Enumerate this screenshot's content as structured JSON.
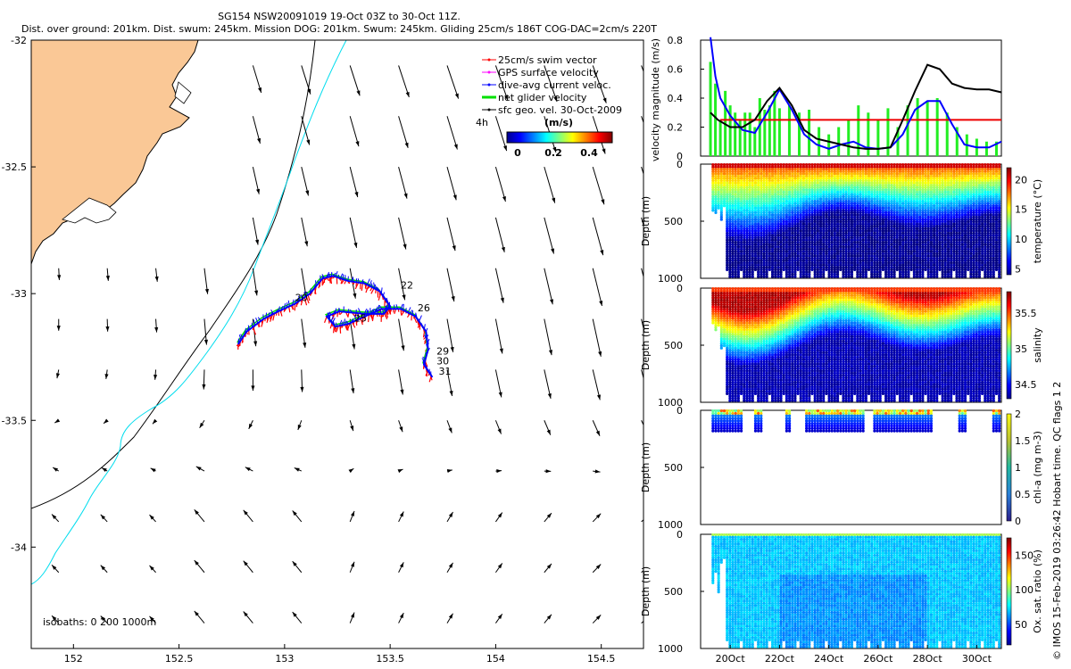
{
  "title": {
    "line1": "SG154 NSW20091019 19-Oct 03Z to 30-Oct 11Z.",
    "line2": "Dist. over ground: 201km. Dist. swum: 245km. Mission DOG: 201km. Swum: 245km. Gliding 25cm/s 186T COG-DAC=2cm/s 220T"
  },
  "colors": {
    "land": "#FAC896",
    "isobath200": "#00DDEE",
    "isobath1000": "#000000",
    "swim": "#FF0000",
    "gps": "#FF00FF",
    "dac": "#0000FF",
    "net": "#00E000",
    "ref": "#EE0000"
  },
  "map": {
    "legend": {
      "items": [
        "25cm/s swim vector",
        "GPS surface velocity",
        "dive-avg current veloc.",
        "net glider velocity",
        "sfc geo. vel. 30-Oct-2009"
      ],
      "scale_label": "4h",
      "unit": "(m/s)",
      "cbar_ticks": [
        "0",
        "0.2",
        "0.4"
      ]
    },
    "isobaths_label": "isobaths: 0   200   1000m",
    "day_labels": [
      {
        "text": "22",
        "lon": 153.55,
        "lat": -32.98
      },
      {
        "text": "26",
        "lon": 153.63,
        "lat": -33.07
      },
      {
        "text": "29",
        "lon": 153.72,
        "lat": -33.24
      },
      {
        "text": "30",
        "lon": 153.72,
        "lat": -33.28
      },
      {
        "text": "31",
        "lon": 153.73,
        "lat": -33.32
      },
      {
        "text": "25",
        "lon": 153.33,
        "lat": -33.11
      },
      {
        "text": "20",
        "lon": 153.05,
        "lat": -33.03
      }
    ]
  },
  "chart_data": [
    {
      "type": "quiver-map",
      "title": "Glider track map with surface geostrophic velocity",
      "xlim": [
        151.8,
        154.7
      ],
      "ylim": [
        -34.4,
        -32
      ],
      "xticks": [
        152,
        152.5,
        153,
        153.5,
        154,
        154.5
      ],
      "yticks": [
        -32,
        -32.5,
        -33,
        -33.5,
        -34
      ],
      "xtick_labels": [
        "152",
        "152.5",
        "153",
        "153.5",
        "154",
        "154.5"
      ],
      "ytick_labels": [
        "-32",
        "-32.5",
        "-33",
        "-33.5",
        "-34"
      ],
      "track": [
        [
          152.78,
          -33.2
        ],
        [
          152.82,
          -33.15
        ],
        [
          152.9,
          -33.1
        ],
        [
          152.97,
          -33.07
        ],
        [
          153.05,
          -33.04
        ],
        [
          153.12,
          -33.0
        ],
        [
          153.18,
          -32.94
        ],
        [
          153.23,
          -32.93
        ],
        [
          153.3,
          -32.95
        ],
        [
          153.38,
          -32.96
        ],
        [
          153.45,
          -32.99
        ],
        [
          153.5,
          -33.05
        ],
        [
          153.47,
          -33.08
        ],
        [
          153.38,
          -33.08
        ],
        [
          153.26,
          -33.07
        ],
        [
          153.2,
          -33.09
        ],
        [
          153.24,
          -33.13
        ],
        [
          153.3,
          -33.12
        ],
        [
          153.38,
          -33.09
        ],
        [
          153.46,
          -33.06
        ],
        [
          153.55,
          -33.06
        ],
        [
          153.62,
          -33.09
        ],
        [
          153.67,
          -33.15
        ],
        [
          153.68,
          -33.22
        ],
        [
          153.66,
          -33.28
        ],
        [
          153.7,
          -33.33
        ]
      ]
    },
    {
      "type": "line",
      "title": "velocity magnitude",
      "ylabel": "velocity magnitude (m/s)",
      "ylim": [
        0,
        0.8
      ],
      "yticks": [
        0,
        0.2,
        0.4,
        0.6,
        0.8
      ],
      "ytick_labels": [
        "0",
        "0.2",
        "0.4",
        "0.6",
        "0.8"
      ],
      "xlim": [
        18.8,
        31
      ],
      "reference": 0.25,
      "series": [
        {
          "name": "dive-avg current",
          "color": "#0000FF",
          "x": [
            19.2,
            19.4,
            19.6,
            20,
            20.5,
            21,
            21.5,
            22,
            22.5,
            23,
            23.5,
            24,
            24.5,
            25,
            25.5,
            26,
            26.5,
            27,
            27.5,
            28,
            28.5,
            29,
            29.5,
            30,
            30.5,
            31
          ],
          "y": [
            0.82,
            0.55,
            0.4,
            0.28,
            0.18,
            0.16,
            0.3,
            0.46,
            0.32,
            0.15,
            0.08,
            0.05,
            0.08,
            0.1,
            0.06,
            0.05,
            0.06,
            0.15,
            0.32,
            0.38,
            0.38,
            0.22,
            0.08,
            0.06,
            0.06,
            0.1
          ]
        },
        {
          "name": "sfc geo. vel.",
          "color": "#000000",
          "x": [
            19.2,
            19.5,
            20,
            20.5,
            21,
            21.5,
            22,
            22.5,
            23,
            23.5,
            24,
            24.5,
            25,
            25.5,
            26,
            26.5,
            27,
            27.5,
            28,
            28.5,
            29,
            29.5,
            30,
            30.5,
            31
          ],
          "y": [
            0.3,
            0.25,
            0.2,
            0.2,
            0.25,
            0.38,
            0.47,
            0.35,
            0.18,
            0.12,
            0.1,
            0.08,
            0.06,
            0.05,
            0.05,
            0.06,
            0.25,
            0.45,
            0.63,
            0.6,
            0.5,
            0.47,
            0.46,
            0.46,
            0.44
          ]
        },
        {
          "name": "net glider velocity",
          "color": "#22EE22",
          "x": [
            19.2,
            19.4,
            19.6,
            19.8,
            20,
            20.2,
            20.4,
            20.6,
            20.8,
            21,
            21.2,
            21.4,
            21.6,
            21.8,
            22,
            22.4,
            22.8,
            23.2,
            23.6,
            24,
            24.4,
            24.8,
            25.2,
            25.6,
            26,
            26.4,
            26.8,
            27.2,
            27.6,
            28,
            28.4,
            28.8,
            29.2,
            29.6,
            30,
            30.4,
            30.8
          ],
          "y": [
            0.65,
            0.5,
            0.25,
            0.45,
            0.35,
            0.3,
            0.25,
            0.3,
            0.3,
            0.2,
            0.4,
            0.32,
            0.35,
            0.45,
            0.33,
            0.35,
            0.3,
            0.32,
            0.2,
            0.15,
            0.2,
            0.25,
            0.35,
            0.3,
            0.25,
            0.33,
            0.2,
            0.35,
            0.4,
            0.38,
            0.4,
            0.3,
            0.2,
            0.15,
            0.12,
            0.1,
            0.1
          ]
        }
      ]
    },
    {
      "type": "heatmap",
      "ylabel": "Depth (m)",
      "cbar_label": "temperature (°C)",
      "ylim": [
        1000,
        0
      ],
      "yticks": [
        "0",
        "500",
        "1000"
      ],
      "cbar_ticks": [
        "5",
        "10",
        "15",
        "20"
      ],
      "clim": [
        4,
        22
      ]
    },
    {
      "type": "heatmap",
      "ylabel": "Depth (m)",
      "cbar_label": "salinity",
      "ylim": [
        1000,
        0
      ],
      "yticks": [
        "0",
        "500",
        "1000"
      ],
      "cbar_ticks": [
        "34.5",
        "35",
        "35.5"
      ],
      "clim": [
        34.3,
        35.8
      ]
    },
    {
      "type": "heatmap",
      "ylabel": "Depth (m)",
      "cbar_label": "chl-a (mg m-3)",
      "ylim": [
        1000,
        0
      ],
      "yticks": [
        "0",
        "500",
        "1000"
      ],
      "cbar_ticks": [
        "0",
        "0.5",
        "1",
        "1.5",
        "2"
      ],
      "clim": [
        0,
        2
      ]
    },
    {
      "type": "heatmap",
      "ylabel": "Depth (m)",
      "cbar_label": "Ox. sat. ratio (%)",
      "ylim": [
        1000,
        0
      ],
      "yticks": [
        "0",
        "500",
        "1000"
      ],
      "cbar_ticks": [
        "50",
        "100",
        "150"
      ],
      "clim": [
        20,
        175
      ],
      "xtick_labels": [
        "20Oct",
        "22Oct",
        "24Oct",
        "26Oct",
        "28Oct",
        "30Oct"
      ]
    }
  ],
  "copyright": "© IMOS 15-Feb-2019 03:26:42 Hobart time. QC flags 1  2"
}
